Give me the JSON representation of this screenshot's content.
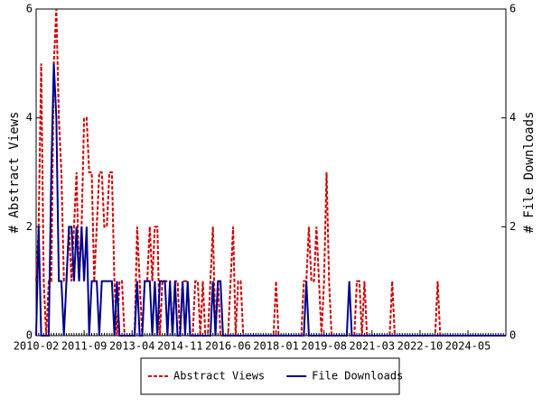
{
  "chart_data": {
    "type": "line",
    "ylabel": "# Abstract Views",
    "y2label": "# File Downloads",
    "x": [
      "2010-02",
      "2010-03",
      "2010-04",
      "2010-05",
      "2010-06",
      "2010-07",
      "2010-08",
      "2010-09",
      "2010-10",
      "2010-11",
      "2010-12",
      "2011-01",
      "2011-02",
      "2011-03",
      "2011-04",
      "2011-05",
      "2011-06",
      "2011-07",
      "2011-08",
      "2011-09",
      "2011-10",
      "2011-11",
      "2011-12",
      "2012-01",
      "2012-02",
      "2012-03",
      "2012-04",
      "2012-05",
      "2012-06",
      "2012-07",
      "2012-08",
      "2012-09",
      "2012-10",
      "2012-11",
      "2012-12",
      "2013-01",
      "2013-02",
      "2013-03",
      "2013-04",
      "2013-05",
      "2013-06",
      "2013-07",
      "2013-08",
      "2013-09",
      "2013-10",
      "2013-11",
      "2013-12",
      "2014-01",
      "2014-02",
      "2014-03",
      "2014-04",
      "2014-05",
      "2014-06",
      "2014-07",
      "2014-08",
      "2014-09",
      "2014-10",
      "2014-11",
      "2014-12",
      "2015-01",
      "2015-02",
      "2015-03",
      "2015-04",
      "2015-05",
      "2015-06",
      "2015-07",
      "2015-08",
      "2015-09",
      "2015-10",
      "2015-11",
      "2015-12",
      "2016-01",
      "2016-02",
      "2016-03",
      "2016-04",
      "2016-05",
      "2016-06",
      "2016-07",
      "2016-08",
      "2016-09",
      "2016-10",
      "2016-11",
      "2016-12",
      "2017-01",
      "2017-02",
      "2017-03",
      "2017-04",
      "2017-05",
      "2017-06",
      "2017-07",
      "2017-08",
      "2017-09",
      "2017-10",
      "2017-11",
      "2017-12",
      "2018-01",
      "2018-02",
      "2018-03",
      "2018-04",
      "2018-05",
      "2018-06",
      "2018-07",
      "2018-08",
      "2018-09",
      "2018-10",
      "2018-11",
      "2018-12",
      "2019-01",
      "2019-02",
      "2019-03",
      "2019-04",
      "2019-05",
      "2019-06",
      "2019-07",
      "2019-08",
      "2019-09",
      "2019-10",
      "2019-11",
      "2019-12",
      "2020-01",
      "2020-02",
      "2020-03",
      "2020-04",
      "2020-05",
      "2020-06",
      "2020-07",
      "2020-08",
      "2020-09",
      "2020-10",
      "2020-11",
      "2020-12",
      "2021-01",
      "2021-02",
      "2021-03",
      "2021-04",
      "2021-05",
      "2021-06",
      "2021-07",
      "2021-08",
      "2021-09",
      "2021-10",
      "2021-11",
      "2021-12",
      "2022-01",
      "2022-02",
      "2022-03",
      "2022-04",
      "2022-05",
      "2022-06",
      "2022-07",
      "2022-08",
      "2022-09",
      "2022-10",
      "2022-11",
      "2022-12",
      "2023-01",
      "2023-02",
      "2023-03",
      "2023-04",
      "2023-05",
      "2023-06",
      "2023-07",
      "2023-08",
      "2023-09",
      "2023-10",
      "2023-11",
      "2023-12",
      "2024-01",
      "2024-02",
      "2024-03",
      "2024-04",
      "2024-05",
      "2024-06",
      "2024-07",
      "2024-08",
      "2024-09",
      "2024-10",
      "2024-11",
      "2024-12",
      "2025-01",
      "2025-02",
      "2025-03",
      "2025-04",
      "2025-05",
      "2025-06",
      "2025-07",
      "2025-08"
    ],
    "xticks": [
      "2010-02",
      "2011-09",
      "2013-04",
      "2014-11",
      "2016-06",
      "2018-01",
      "2019-08",
      "2021-03",
      "2022-10",
      "2024-05"
    ],
    "ylim": [
      0,
      6
    ],
    "yticks": [
      0,
      2,
      4,
      6
    ],
    "y2lim": [
      0,
      6
    ],
    "y2ticks": [
      0,
      2,
      4,
      6
    ],
    "series": [
      {
        "name": "Abstract Views",
        "color": "#cc0000",
        "dashed": true,
        "values": [
          1,
          2,
          5,
          1,
          0,
          1,
          1,
          5,
          6,
          4,
          3,
          1,
          1,
          2,
          1,
          2,
          3,
          1,
          2,
          4,
          4,
          3,
          3,
          1,
          2,
          3,
          3,
          2,
          2,
          3,
          3,
          1,
          0,
          1,
          1,
          0,
          0,
          0,
          0,
          0,
          2,
          1,
          0,
          1,
          1,
          2,
          1,
          2,
          2,
          0,
          1,
          1,
          1,
          1,
          0,
          1,
          1,
          0,
          1,
          1,
          1,
          0,
          0,
          1,
          1,
          0,
          1,
          0,
          0,
          1,
          2,
          0,
          1,
          0,
          0,
          0,
          0,
          1,
          2,
          0,
          1,
          1,
          0,
          0,
          0,
          0,
          0,
          0,
          0,
          0,
          0,
          0,
          0,
          0,
          0,
          1,
          0,
          0,
          0,
          0,
          0,
          0,
          0,
          0,
          0,
          0,
          1,
          1,
          2,
          1,
          1,
          2,
          1,
          0,
          1,
          3,
          1,
          0,
          0,
          0,
          0,
          0,
          0,
          0,
          0,
          0,
          0,
          1,
          1,
          0,
          1,
          0,
          0,
          0,
          0,
          0,
          0,
          0,
          0,
          0,
          0,
          1,
          0,
          0,
          0,
          0,
          0,
          0,
          0,
          0,
          0,
          0,
          0,
          0,
          0,
          0,
          0,
          0,
          0,
          1,
          0,
          0,
          0,
          0,
          0,
          0,
          0,
          0,
          0,
          0,
          0,
          0,
          0,
          0,
          0,
          0,
          0,
          0,
          0,
          0,
          0,
          0,
          0,
          0,
          0,
          0,
          0
        ]
      },
      {
        "name": "File Downloads",
        "color": "#00008b",
        "axis": "y2",
        "values": [
          0,
          2,
          0,
          0,
          0,
          0,
          3,
          5,
          4,
          1,
          1,
          0,
          1,
          2,
          2,
          1,
          2,
          1,
          2,
          1,
          2,
          0,
          1,
          1,
          1,
          0,
          1,
          1,
          1,
          1,
          1,
          0,
          1,
          0,
          0,
          0,
          0,
          0,
          0,
          0,
          1,
          0,
          0,
          1,
          1,
          1,
          0,
          1,
          0,
          1,
          1,
          1,
          0,
          1,
          0,
          1,
          0,
          0,
          1,
          0,
          1,
          0,
          0,
          0,
          0,
          0,
          0,
          0,
          0,
          0,
          1,
          0,
          1,
          1,
          0,
          0,
          0,
          0,
          0,
          0,
          0,
          0,
          0,
          0,
          0,
          0,
          0,
          0,
          0,
          0,
          0,
          0,
          0,
          0,
          0,
          0,
          0,
          0,
          0,
          0,
          0,
          0,
          0,
          0,
          0,
          0,
          0,
          1,
          0,
          0,
          0,
          0,
          0,
          0,
          0,
          0,
          0,
          0,
          0,
          0,
          0,
          0,
          0,
          0,
          1,
          0,
          0,
          0,
          0,
          0,
          0,
          0,
          0,
          0,
          0,
          0,
          0,
          0,
          0,
          0,
          0,
          0,
          0,
          0,
          0,
          0,
          0,
          0,
          0,
          0,
          0,
          0,
          0,
          0,
          0,
          0,
          0,
          0,
          0,
          0,
          0,
          0,
          0,
          0,
          0,
          0,
          0,
          0,
          0,
          0,
          0,
          0,
          0,
          0,
          0,
          0,
          0,
          0,
          0,
          0,
          0,
          0,
          0,
          0,
          0,
          0,
          0
        ]
      }
    ],
    "legend": "bottom"
  }
}
